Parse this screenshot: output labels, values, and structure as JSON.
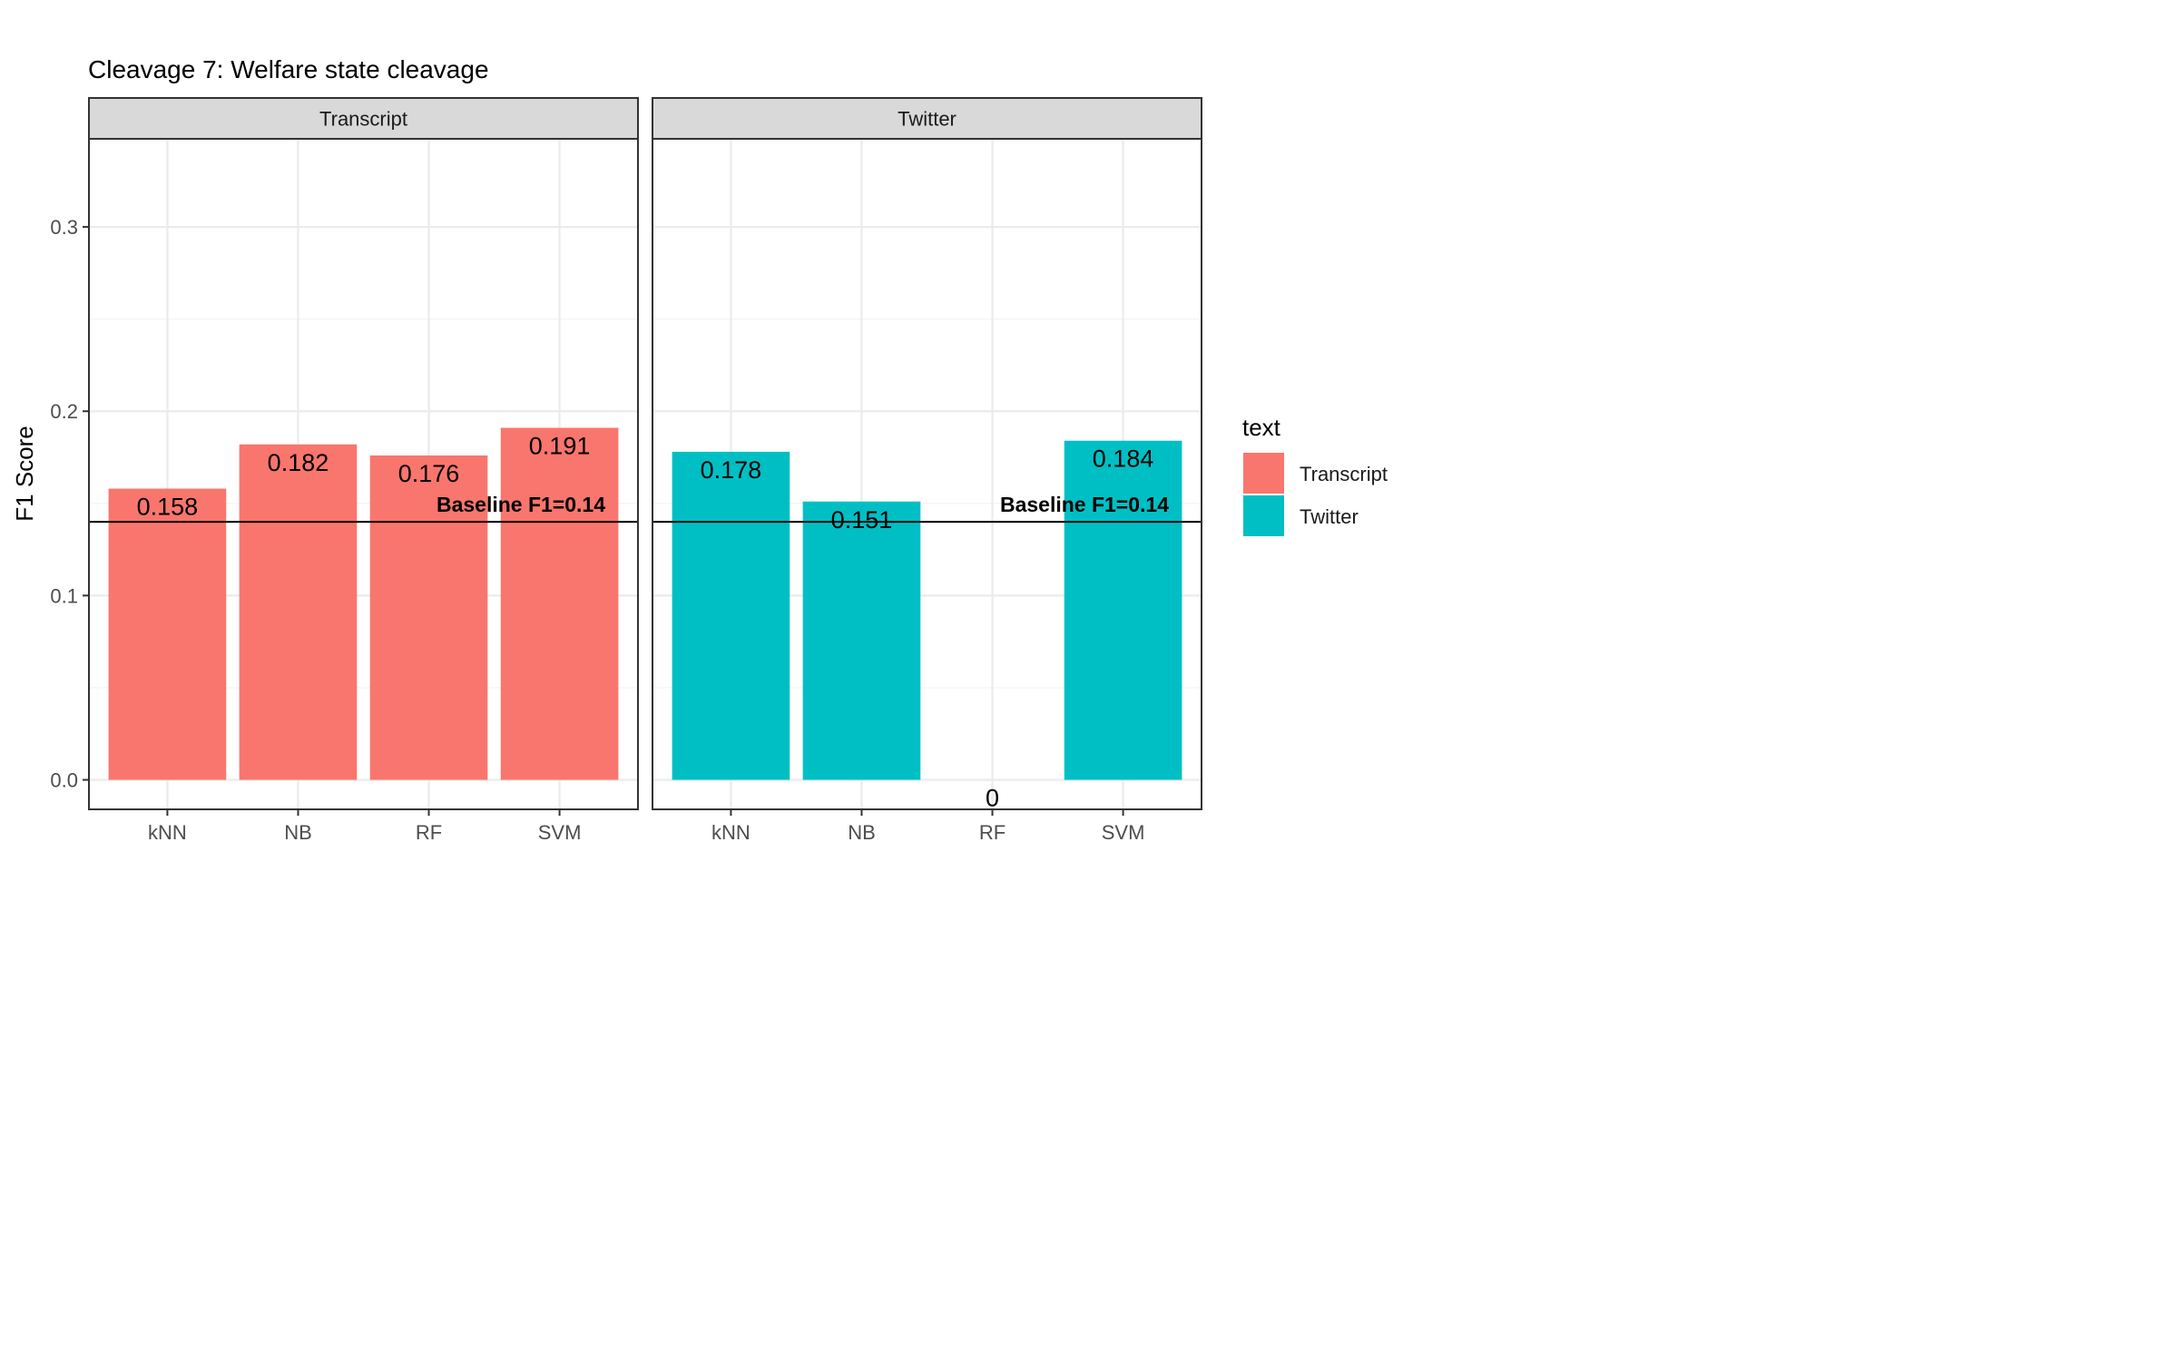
{
  "chart_data": {
    "type": "bar",
    "title": "Cleavage 7: Welfare state cleavage",
    "xlabel": "",
    "ylabel": "F1 Score",
    "ylim": [
      -0.016,
      0.3478
    ],
    "yticks": [
      0.0,
      0.1,
      0.2,
      0.3
    ],
    "ytick_labels": [
      "0.0",
      "0.1",
      "0.2",
      "0.3"
    ],
    "categories": [
      "kNN",
      "NB",
      "RF",
      "SVM"
    ],
    "facets": [
      {
        "name": "Transcript",
        "color": "#F8766D",
        "values": [
          0.158,
          0.182,
          0.176,
          0.191
        ],
        "labels": [
          "0.158",
          "0.182",
          "0.176",
          "0.191"
        ]
      },
      {
        "name": "Twitter",
        "color": "#00BFC4",
        "values": [
          0.178,
          0.151,
          0,
          0.184
        ],
        "labels": [
          "0.178",
          "0.151",
          "0",
          "0.184"
        ]
      }
    ],
    "baseline": {
      "value": 0.14,
      "label": "Baseline F1=0.14"
    },
    "legend": {
      "title": "text",
      "position": "right",
      "entries": [
        {
          "label": "Transcript",
          "color": "#F8766D"
        },
        {
          "label": "Twitter",
          "color": "#00BFC4"
        }
      ]
    },
    "grid": true
  }
}
